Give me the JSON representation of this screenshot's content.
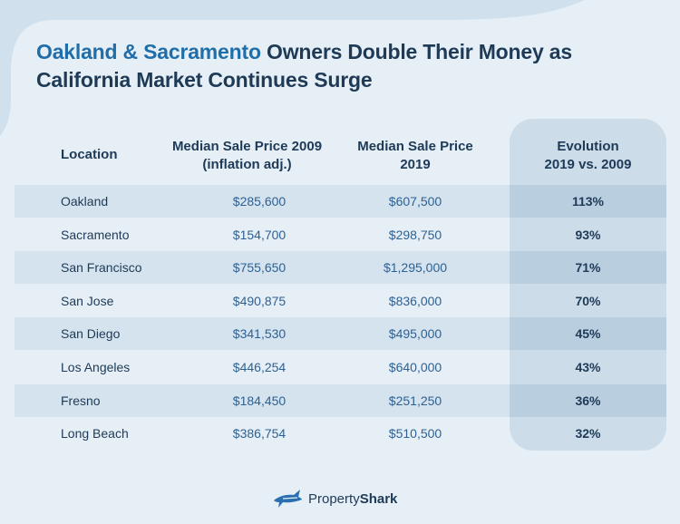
{
  "title": {
    "highlight": "Oakland & Sacramento",
    "rest_line1": " Owners Double Their Money as",
    "line2": "California Market Continues Surge"
  },
  "colors": {
    "background": "#e6eff6",
    "title_dark": "#1e3a57",
    "title_highlight": "#1f6eaa",
    "row_shade": "#d4e3ee",
    "evolution_column": "#ccdde9",
    "price_text": "#2e6193"
  },
  "chart_data": {
    "type": "table",
    "columns": [
      {
        "line1": "Location",
        "line2": ""
      },
      {
        "line1": "Median Sale Price 2009",
        "line2": "(inflation adj.)"
      },
      {
        "line1": "Median Sale Price",
        "line2": "2019"
      },
      {
        "line1": "Evolution",
        "line2": "2019 vs. 2009"
      }
    ],
    "rows": [
      {
        "location": "Oakland",
        "price_2009": "$285,600",
        "price_2019": "$607,500",
        "evolution": "113%"
      },
      {
        "location": "Sacramento",
        "price_2009": "$154,700",
        "price_2019": "$298,750",
        "evolution": "93%"
      },
      {
        "location": "San Francisco",
        "price_2009": "$755,650",
        "price_2019": "$1,295,000",
        "evolution": "71%"
      },
      {
        "location": "San Jose",
        "price_2009": "$490,875",
        "price_2019": "$836,000",
        "evolution": "70%"
      },
      {
        "location": "San Diego",
        "price_2009": "$341,530",
        "price_2019": "$495,000",
        "evolution": "45%"
      },
      {
        "location": "Los Angeles",
        "price_2009": "$446,254",
        "price_2019": "$640,000",
        "evolution": "43%"
      },
      {
        "location": "Fresno",
        "price_2009": "$184,450",
        "price_2019": "$251,250",
        "evolution": "36%"
      },
      {
        "location": "Long Beach",
        "price_2009": "$386,754",
        "price_2019": "$510,500",
        "evolution": "32%"
      }
    ]
  },
  "footer": {
    "brand_part1": "Property",
    "brand_part2": "Shark",
    "logo_icon": "shark-icon"
  }
}
